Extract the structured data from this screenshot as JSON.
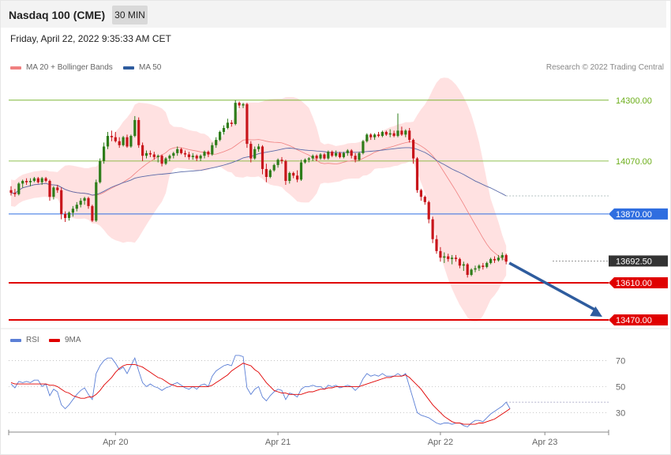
{
  "header": {
    "title": "Nasdaq 100 (CME)",
    "timeframe": "30 MIN",
    "datetime": "Friday, April 22, 2022 9:35:33 AM CET"
  },
  "legend": {
    "items": [
      {
        "label": "MA 20 + Bollinger Bands",
        "color": "#f08080"
      },
      {
        "label": "MA 50",
        "color": "#2e5c9e"
      }
    ],
    "research": "Research © 2022 Trading Central"
  },
  "rsi_legend": {
    "items": [
      {
        "label": "RSI",
        "color": "#5b7fd6"
      },
      {
        "label": "9MA",
        "color": "#e00000"
      }
    ]
  },
  "colors": {
    "up": "#2e7d1a",
    "down": "#c8151b",
    "resistance": "#6cae1a",
    "pivot": "#2f6ee0",
    "support": "#e00000",
    "current": "#333333",
    "band": "#ffdada",
    "ma20": "#f08080",
    "ma50": "#5a6aa8",
    "rsi": "#5b7fd6",
    "rsi_ma": "#e00000",
    "arrow": "#2e5c9e"
  },
  "chart_data": [
    {
      "type": "candlestick",
      "ylim": [
        13455,
        14380
      ],
      "levels": [
        {
          "label": "14300.00",
          "value": 14300,
          "kind": "resistance"
        },
        {
          "label": "14070.00",
          "value": 14070,
          "kind": "resistance"
        },
        {
          "label": "13870.00",
          "value": 13870,
          "kind": "pivot"
        },
        {
          "label": "13692.50",
          "value": 13692.5,
          "kind": "current"
        },
        {
          "label": "13610.00",
          "value": 13610,
          "kind": "support"
        },
        {
          "label": "13470.00",
          "value": 13470,
          "kind": "support"
        }
      ],
      "forecast_arrow": {
        "from": 13685,
        "to": 13470
      },
      "x_ticks": [
        {
          "label": "Apr 20",
          "index": 27
        },
        {
          "label": "Apr 21",
          "index": 69
        },
        {
          "label": "Apr 22",
          "index": 111
        },
        {
          "label": "Apr 23",
          "index": 138
        }
      ],
      "candles": [
        [
          13960,
          13975,
          13940,
          13950
        ],
        [
          13950,
          13965,
          13935,
          13945
        ],
        [
          13945,
          13990,
          13940,
          13985
        ],
        [
          13985,
          14000,
          13970,
          13995
        ],
        [
          13995,
          14005,
          13980,
          13990
        ],
        [
          13990,
          14005,
          13975,
          13995
        ],
        [
          13995,
          14010,
          13990,
          14005
        ],
        [
          14005,
          14010,
          13985,
          13990
        ],
        [
          13990,
          14010,
          13980,
          14005
        ],
        [
          14005,
          14010,
          13990,
          13995
        ],
        [
          13995,
          14000,
          13920,
          13935
        ],
        [
          13935,
          13975,
          13925,
          13970
        ],
        [
          13970,
          13980,
          13950,
          13960
        ],
        [
          13960,
          13970,
          13850,
          13870
        ],
        [
          13870,
          13880,
          13840,
          13855
        ],
        [
          13855,
          13880,
          13845,
          13875
        ],
        [
          13875,
          13900,
          13860,
          13890
        ],
        [
          13890,
          13915,
          13880,
          13905
        ],
        [
          13905,
          13930,
          13895,
          13920
        ],
        [
          13920,
          13935,
          13905,
          13930
        ],
        [
          13930,
          13935,
          13890,
          13900
        ],
        [
          13900,
          13905,
          13840,
          13845
        ],
        [
          13845,
          14000,
          13840,
          13990
        ],
        [
          13990,
          14080,
          13985,
          14070
        ],
        [
          14070,
          14140,
          14060,
          14125
        ],
        [
          14125,
          14180,
          14115,
          14165
        ],
        [
          14165,
          14185,
          14145,
          14160
        ],
        [
          14160,
          14180,
          14140,
          14145
        ],
        [
          14145,
          14160,
          14120,
          14130
        ],
        [
          14130,
          14165,
          14125,
          14160
        ],
        [
          14160,
          14170,
          14120,
          14125
        ],
        [
          14125,
          14170,
          14120,
          14165
        ],
        [
          14165,
          14240,
          14160,
          14225
        ],
        [
          14225,
          14235,
          14120,
          14130
        ],
        [
          14130,
          14140,
          14070,
          14090
        ],
        [
          14090,
          14110,
          14080,
          14100
        ],
        [
          14100,
          14110,
          14085,
          14095
        ],
        [
          14095,
          14105,
          14075,
          14085
        ],
        [
          14085,
          14095,
          14065,
          14090
        ],
        [
          14090,
          14095,
          14050,
          14060
        ],
        [
          14060,
          14085,
          14055,
          14080
        ],
        [
          14080,
          14095,
          14070,
          14090
        ],
        [
          14090,
          14105,
          14080,
          14100
        ],
        [
          14100,
          14125,
          14090,
          14115
        ],
        [
          14115,
          14120,
          14095,
          14100
        ],
        [
          14100,
          14110,
          14085,
          14095
        ],
        [
          14095,
          14105,
          14075,
          14085
        ],
        [
          14085,
          14100,
          14075,
          14090
        ],
        [
          14090,
          14095,
          14070,
          14080
        ],
        [
          14080,
          14095,
          14070,
          14090
        ],
        [
          14090,
          14110,
          14080,
          14105
        ],
        [
          14105,
          14110,
          14085,
          14095
        ],
        [
          14095,
          14140,
          14090,
          14130
        ],
        [
          14130,
          14160,
          14120,
          14150
        ],
        [
          14150,
          14185,
          14145,
          14180
        ],
        [
          14180,
          14205,
          14170,
          14195
        ],
        [
          14195,
          14230,
          14190,
          14215
        ],
        [
          14215,
          14225,
          14200,
          14210
        ],
        [
          14210,
          14300,
          14205,
          14290
        ],
        [
          14290,
          14295,
          14270,
          14280
        ],
        [
          14280,
          14290,
          14270,
          14285
        ],
        [
          14285,
          14290,
          14120,
          14135
        ],
        [
          14135,
          14145,
          14065,
          14080
        ],
        [
          14080,
          14125,
          14075,
          14115
        ],
        [
          14115,
          14135,
          14105,
          14125
        ],
        [
          14125,
          14130,
          14020,
          14040
        ],
        [
          14040,
          14060,
          13990,
          14010
        ],
        [
          14010,
          14040,
          14005,
          14035
        ],
        [
          14035,
          14060,
          14030,
          14055
        ],
        [
          14055,
          14080,
          14045,
          14075
        ],
        [
          14075,
          14085,
          14060,
          14070
        ],
        [
          14070,
          14075,
          13980,
          13995
        ],
        [
          13995,
          14030,
          13985,
          14025
        ],
        [
          14025,
          14030,
          14005,
          14015
        ],
        [
          14015,
          14035,
          13990,
          14000
        ],
        [
          14000,
          14075,
          13995,
          14065
        ],
        [
          14065,
          14080,
          14060,
          14075
        ],
        [
          14075,
          14085,
          14065,
          14080
        ],
        [
          14080,
          14095,
          14070,
          14090
        ],
        [
          14090,
          14095,
          14070,
          14080
        ],
        [
          14080,
          14100,
          14075,
          14095
        ],
        [
          14095,
          14100,
          14075,
          14080
        ],
        [
          14080,
          14110,
          14075,
          14105
        ],
        [
          14105,
          14110,
          14085,
          14090
        ],
        [
          14090,
          14110,
          14085,
          14100
        ],
        [
          14100,
          14105,
          14080,
          14085
        ],
        [
          14085,
          14105,
          14080,
          14100
        ],
        [
          14100,
          14115,
          14090,
          14110
        ],
        [
          14110,
          14115,
          14080,
          14090
        ],
        [
          14090,
          14100,
          14065,
          14075
        ],
        [
          14075,
          14105,
          14070,
          14100
        ],
        [
          14100,
          14150,
          14095,
          14145
        ],
        [
          14145,
          14175,
          14140,
          14170
        ],
        [
          14170,
          14175,
          14150,
          14160
        ],
        [
          14160,
          14175,
          14150,
          14170
        ],
        [
          14170,
          14180,
          14160,
          14165
        ],
        [
          14165,
          14185,
          14160,
          14180
        ],
        [
          14180,
          14185,
          14165,
          14170
        ],
        [
          14170,
          14190,
          14160,
          14175
        ],
        [
          14175,
          14185,
          14160,
          14165
        ],
        [
          14165,
          14250,
          14160,
          14185
        ],
        [
          14185,
          14200,
          14165,
          14170
        ],
        [
          14170,
          14190,
          14160,
          14185
        ],
        [
          14185,
          14195,
          14140,
          14150
        ],
        [
          14150,
          14155,
          14060,
          14080
        ],
        [
          14080,
          14085,
          13950,
          13960
        ],
        [
          13960,
          13965,
          13920,
          13935
        ],
        [
          13935,
          13940,
          13905,
          13915
        ],
        [
          13915,
          13920,
          13835,
          13850
        ],
        [
          13850,
          13860,
          13760,
          13775
        ],
        [
          13775,
          13790,
          13720,
          13730
        ],
        [
          13730,
          13745,
          13690,
          13705
        ],
        [
          13705,
          13725,
          13685,
          13710
        ],
        [
          13710,
          13720,
          13690,
          13700
        ],
        [
          13700,
          13715,
          13680,
          13705
        ],
        [
          13705,
          13715,
          13690,
          13700
        ],
        [
          13700,
          13705,
          13665,
          13675
        ],
        [
          13675,
          13690,
          13655,
          13680
        ],
        [
          13680,
          13685,
          13630,
          13640
        ],
        [
          13640,
          13665,
          13635,
          13660
        ],
        [
          13660,
          13675,
          13650,
          13665
        ],
        [
          13665,
          13680,
          13655,
          13675
        ],
        [
          13675,
          13685,
          13660,
          13670
        ],
        [
          13670,
          13690,
          13665,
          13685
        ],
        [
          13685,
          13705,
          13680,
          13700
        ],
        [
          13700,
          13710,
          13685,
          13695
        ],
        [
          13695,
          13715,
          13690,
          13705
        ],
        [
          13705,
          13725,
          13695,
          13715
        ],
        [
          13715,
          13720,
          13680,
          13690
        ]
      ]
    },
    {
      "type": "line",
      "title": "RSI",
      "ylim": [
        15,
        80
      ],
      "y_ticks": [
        70,
        50,
        30
      ],
      "series": [
        {
          "name": "RSI",
          "values": [
            52,
            49,
            54,
            53,
            54,
            53,
            55,
            55,
            50,
            52,
            43,
            48,
            46,
            36,
            33,
            36,
            40,
            44,
            47,
            49,
            44,
            40,
            60,
            66,
            70,
            72,
            72,
            68,
            63,
            65,
            60,
            66,
            72,
            62,
            53,
            50,
            52,
            50,
            49,
            47,
            49,
            50,
            52,
            53,
            51,
            49,
            48,
            50,
            48,
            51,
            52,
            50,
            58,
            62,
            64,
            66,
            67,
            66,
            74,
            74,
            73,
            49,
            44,
            48,
            50,
            42,
            39,
            43,
            46,
            48,
            47,
            40,
            45,
            44,
            42,
            48,
            50,
            50,
            51,
            50,
            50,
            48,
            51,
            50,
            51,
            49,
            50,
            51,
            50,
            47,
            50,
            56,
            60,
            58,
            59,
            58,
            60,
            58,
            58,
            58,
            60,
            58,
            60,
            50,
            40,
            30,
            28,
            27,
            26,
            24,
            22,
            21,
            22,
            22,
            21,
            22,
            22,
            20,
            19,
            22,
            24,
            24,
            23,
            26,
            29,
            31,
            33,
            35,
            38,
            33
          ]
        },
        {
          "name": "9MA",
          "values": [
            53,
            52,
            52,
            52,
            52,
            52,
            52,
            52,
            52,
            52,
            51,
            51,
            50,
            48,
            46,
            45,
            43,
            42,
            41,
            41,
            42,
            42,
            44,
            47,
            51,
            54,
            57,
            61,
            64,
            66,
            67,
            67,
            67,
            66,
            65,
            63,
            61,
            59,
            57,
            56,
            54,
            52,
            51,
            50,
            50,
            50,
            50,
            50,
            50,
            50,
            50,
            50,
            51,
            53,
            55,
            57,
            59,
            62,
            64,
            66,
            68,
            67,
            66,
            63,
            61,
            57,
            53,
            50,
            47,
            46,
            45,
            45,
            44,
            44,
            44,
            44,
            45,
            46,
            46,
            47,
            48,
            48,
            49,
            49,
            50,
            50,
            50,
            50,
            50,
            50,
            50,
            51,
            52,
            53,
            54,
            55,
            56,
            57,
            57,
            58,
            58,
            58,
            59,
            57,
            54,
            51,
            48,
            44,
            40,
            36,
            33,
            30,
            27,
            25,
            23,
            22,
            22,
            21,
            21,
            21,
            21,
            22,
            22,
            23,
            24,
            25,
            27,
            29,
            31,
            33
          ]
        }
      ]
    }
  ]
}
